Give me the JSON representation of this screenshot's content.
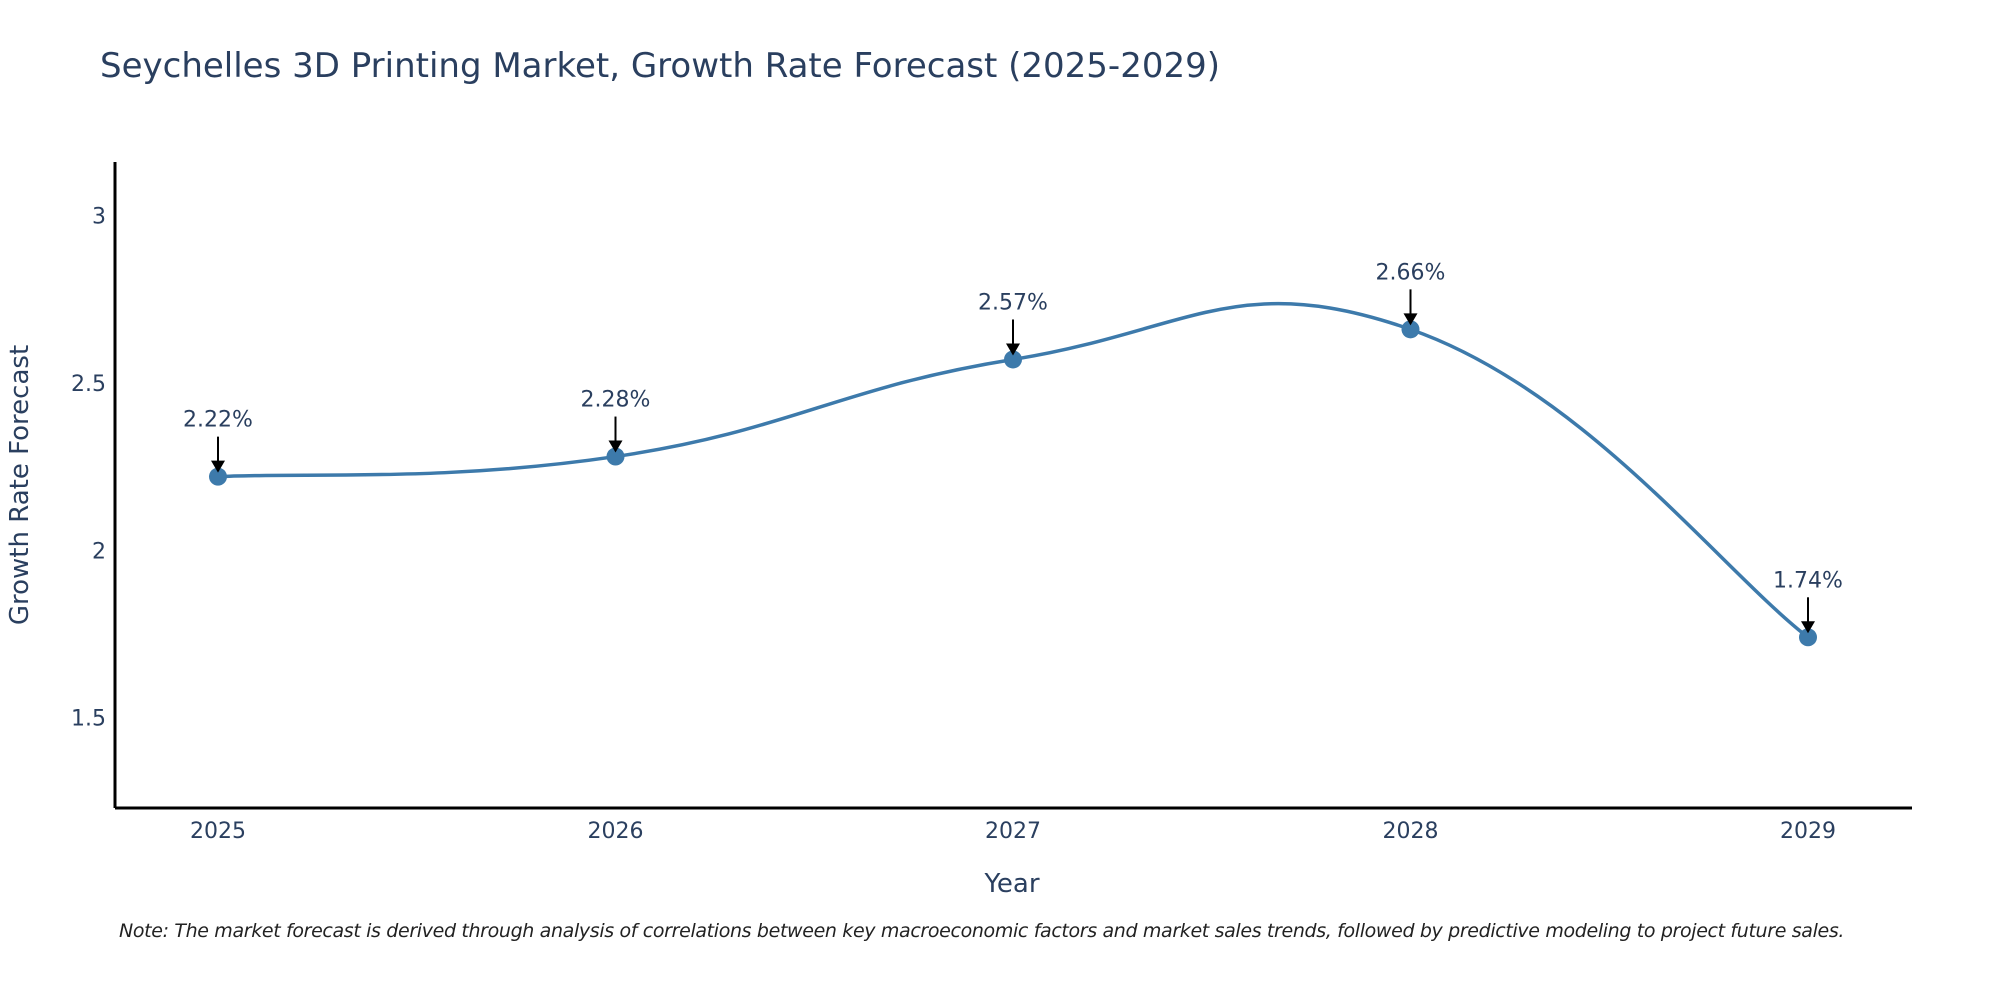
{
  "title": "Seychelles 3D Printing Market, Growth Rate Forecast (2025-2029)",
  "note": "Note: The market forecast is derived through analysis of correlations between key macroeconomic factors and market sales trends, followed by predictive modeling to project future sales.",
  "colors": {
    "series": "#3d7aab",
    "text": "#2a3f5f",
    "axis": "#000000",
    "arrow": "#000000"
  },
  "chart_data": {
    "type": "line",
    "title": "Seychelles 3D Printing Market, Growth Rate Forecast (2025-2029)",
    "xlabel": "Year",
    "ylabel": "Growth Rate Forecast",
    "categories": [
      "2025",
      "2026",
      "2027",
      "2028",
      "2029"
    ],
    "series": [
      {
        "name": "Growth Rate Forecast",
        "values": [
          2.22,
          2.28,
          2.57,
          2.66,
          1.74
        ]
      }
    ],
    "data_labels": [
      "2.22%",
      "2.28%",
      "2.57%",
      "2.66%",
      "1.74%"
    ],
    "ylim": [
      1.23,
      3.16
    ],
    "yticks": [
      1.5,
      2,
      2.5,
      3
    ],
    "ytick_labels": [
      "1.5",
      "2",
      "2.5",
      "3"
    ],
    "grid": false,
    "legend": "none",
    "line_shape": "spline"
  }
}
